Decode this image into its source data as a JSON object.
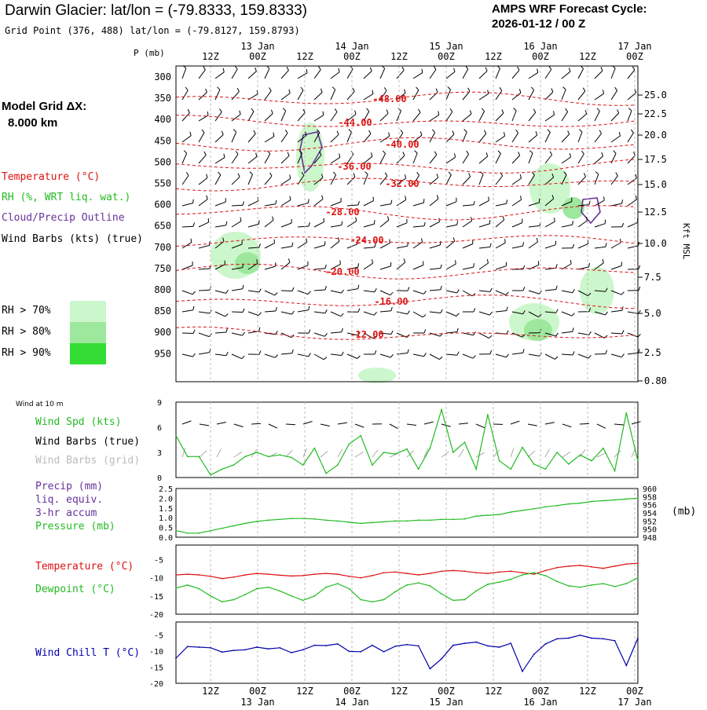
{
  "header": {
    "title": "Darwin Glacier:  lat/lon = (-79.8333, 159.8333)",
    "grid_point": "Grid Point (376, 488) lat/lon = (-79.8127, 159.8793)",
    "cycle_line1": "AMPS WRF Forecast Cycle:",
    "cycle_line2": "2026-01-12 / 00  Z"
  },
  "model_grid": {
    "line1": "Model Grid ΔX:",
    "line2": "8.000 km"
  },
  "colors": {
    "temperature": "#dd1111",
    "rh": "#22bb22",
    "cloud": "#663399",
    "wind": "#000000",
    "wind_grid": "#aaaaaa",
    "pressure": "#22bb22",
    "dewpoint": "#22bb22",
    "windchill": "#0000aa",
    "rh70": "#ccf7cc",
    "rh80": "#9ee89e",
    "rh90": "#33dd33"
  },
  "legend_upper": {
    "temperature": "Temperature (°C)",
    "rh": "RH (%, WRT liq. wat.)",
    "cloud": "Cloud/Precip Outline",
    "wind": "Wind Barbs (kts) (true)",
    "rh70": "RH > 70%",
    "rh80": "RH > 80%",
    "rh90": "RH > 90%"
  },
  "time_axis": {
    "hour_labels": [
      "12Z",
      "00Z",
      "12Z",
      "00Z",
      "12Z",
      "00Z",
      "12Z",
      "00Z",
      "12Z",
      "00Z"
    ],
    "date_labels": [
      "13 Jan",
      "14 Jan",
      "15 Jan",
      "16 Jan",
      "17 Jan"
    ]
  },
  "chart_data": [
    {
      "type": "line",
      "name": "time-height cross-section",
      "ylabel": "P (mb)",
      "y2label": "Kft MSL",
      "pressure_ticks": [
        "300",
        "350",
        "400",
        "450",
        "500",
        "550",
        "600",
        "650",
        "700",
        "750",
        "800",
        "850",
        "900",
        "950"
      ],
      "height_ticks": [
        "25.0",
        "22.5",
        "20.0",
        "17.5",
        "15.0",
        "12.5",
        "10.0",
        "7.5",
        "5.0",
        "2.5",
        "0.80"
      ],
      "isotherm_labels": [
        "-48.00",
        "-44.00",
        "-40.00",
        "-36.00",
        "-32.00",
        "-28.00",
        "-24.00",
        "-20.00",
        "-16.00",
        "-12.00"
      ]
    },
    {
      "type": "line",
      "name": "wind at 10 m",
      "title": "Wind at 10 m",
      "labels": [
        "Wind Spd (kts)",
        "Wind Barbs (true)",
        "Wind Barbs (grid)"
      ],
      "y_ticks": [
        "9",
        "6",
        "3",
        "0"
      ],
      "ylim": [
        0,
        9
      ],
      "x": [
        0,
        3,
        6,
        9,
        12,
        15,
        18,
        21,
        24,
        27,
        30,
        33,
        36,
        39,
        42,
        45,
        48,
        51,
        54,
        57,
        60,
        63,
        66,
        69,
        72,
        75,
        78,
        81,
        84,
        87,
        90,
        93,
        96,
        99,
        102,
        105,
        108,
        111,
        114,
        117,
        120
      ],
      "values": [
        5,
        2.5,
        2.5,
        0.3,
        1,
        1.5,
        2.5,
        3,
        2.5,
        2.7,
        2.4,
        1.5,
        3.5,
        0.5,
        1.5,
        4,
        5,
        1.5,
        3,
        2.8,
        3.4,
        1,
        3.5,
        8.1,
        3,
        4.2,
        1,
        7.5,
        2,
        1,
        3.6,
        1.6,
        1,
        3,
        1.6,
        2.7,
        2,
        3.5,
        0.8,
        7.7,
        2
      ]
    },
    {
      "type": "line",
      "name": "precip and pressure",
      "labels": [
        "Precip (mm)",
        "liq. equiv.",
        "3-hr accum",
        "Pressure (mb)"
      ],
      "y_ticks": [
        "2.5",
        "2.0",
        "1.5",
        "1.0",
        "0.5",
        "0.0"
      ],
      "y2_ticks": [
        "960",
        "958",
        "956",
        "954",
        "952",
        "950",
        "948"
      ],
      "unit_right": "(mb)",
      "ylim": [
        948,
        960
      ],
      "x": [
        0,
        3,
        6,
        9,
        12,
        15,
        18,
        21,
        24,
        27,
        30,
        33,
        36,
        39,
        42,
        45,
        48,
        51,
        54,
        57,
        60,
        63,
        66,
        69,
        72,
        75,
        78,
        81,
        84,
        87,
        90,
        93,
        96,
        99,
        102,
        105,
        108,
        111,
        114,
        117,
        120
      ],
      "values": [
        949.6,
        949.0,
        949.0,
        949.6,
        950.2,
        950.8,
        951.4,
        951.9,
        952.2,
        952.4,
        952.6,
        952.6,
        952.5,
        952.2,
        952.0,
        951.7,
        951.4,
        951.6,
        951.8,
        952.0,
        952.0,
        952.2,
        952.2,
        952.4,
        952.4,
        952.5,
        953.2,
        953.4,
        953.6,
        954.2,
        954.6,
        955.0,
        955.5,
        955.8,
        956.2,
        956.4,
        956.8,
        957.0,
        957.2,
        957.4,
        957.6
      ]
    },
    {
      "type": "line",
      "name": "temperature and dewpoint",
      "series_labels": [
        "Temperature (°C)",
        "Dewpoint (°C)"
      ],
      "y_ticks": [
        "-5",
        "-10",
        "-15",
        "-20"
      ],
      "ylim": [
        -20,
        -1
      ],
      "x": [
        0,
        3,
        6,
        9,
        12,
        15,
        18,
        21,
        24,
        27,
        30,
        33,
        36,
        39,
        42,
        45,
        48,
        51,
        54,
        57,
        60,
        63,
        66,
        69,
        72,
        75,
        78,
        81,
        84,
        87,
        90,
        93,
        96,
        99,
        102,
        105,
        108,
        111,
        114,
        117,
        120
      ],
      "series": [
        {
          "name": "Temperature (°C)",
          "values": [
            -9.2,
            -9.0,
            -9.2,
            -9.6,
            -10.2,
            -9.8,
            -9.2,
            -8.8,
            -9.0,
            -9.3,
            -9.5,
            -9.4,
            -9.0,
            -8.8,
            -9.0,
            -9.6,
            -10.0,
            -9.4,
            -8.6,
            -8.4,
            -8.8,
            -9.2,
            -8.8,
            -8.2,
            -8.0,
            -8.2,
            -8.6,
            -8.8,
            -8.4,
            -8.2,
            -8.6,
            -9.0,
            -8.0,
            -7.2,
            -6.8,
            -6.6,
            -7.0,
            -7.4,
            -6.8,
            -6.2,
            -6.0
          ]
        },
        {
          "name": "Dewpoint (°C)",
          "values": [
            -12.8,
            -12.0,
            -13.0,
            -15.0,
            -16.6,
            -16.0,
            -14.6,
            -13.0,
            -12.6,
            -13.6,
            -15.0,
            -16.2,
            -15.0,
            -12.6,
            -11.6,
            -13.0,
            -16.0,
            -16.6,
            -16.0,
            -13.8,
            -12.0,
            -11.4,
            -12.2,
            -14.4,
            -16.2,
            -16.0,
            -13.6,
            -11.8,
            -11.2,
            -10.4,
            -9.2,
            -8.6,
            -9.4,
            -11.0,
            -12.2,
            -12.6,
            -12.0,
            -11.6,
            -12.4,
            -11.6,
            -10.0
          ]
        }
      ]
    },
    {
      "type": "line",
      "name": "wind chill",
      "series_labels": [
        "Wind Chill T (°C)"
      ],
      "y_ticks": [
        "-5",
        "-10",
        "-15",
        "-20"
      ],
      "ylim": [
        -20,
        -1
      ],
      "x": [
        0,
        3,
        6,
        9,
        12,
        15,
        18,
        21,
        24,
        27,
        30,
        33,
        36,
        39,
        42,
        45,
        48,
        51,
        54,
        57,
        60,
        63,
        66,
        69,
        72,
        75,
        78,
        81,
        84,
        87,
        90,
        93,
        96,
        99,
        102,
        105,
        108,
        111,
        114,
        117,
        120
      ],
      "series": [
        {
          "name": "Wind Chill T (°C)",
          "values": [
            -12.2,
            -8.6,
            -8.8,
            -9.0,
            -10.3,
            -9.8,
            -9.6,
            -8.8,
            -9.3,
            -9.0,
            -10.5,
            -9.6,
            -8.2,
            -8.3,
            -7.8,
            -10.1,
            -10.2,
            -8.2,
            -10.2,
            -8.5,
            -8.0,
            -8.4,
            -15.5,
            -12.4,
            -8.2,
            -7.6,
            -7.2,
            -8.4,
            -8.8,
            -7.6,
            -16.3,
            -11.0,
            -7.8,
            -6.2,
            -6.0,
            -5.1,
            -6.0,
            -6.2,
            -6.8,
            -14.5,
            -6.0
          ]
        }
      ]
    }
  ]
}
